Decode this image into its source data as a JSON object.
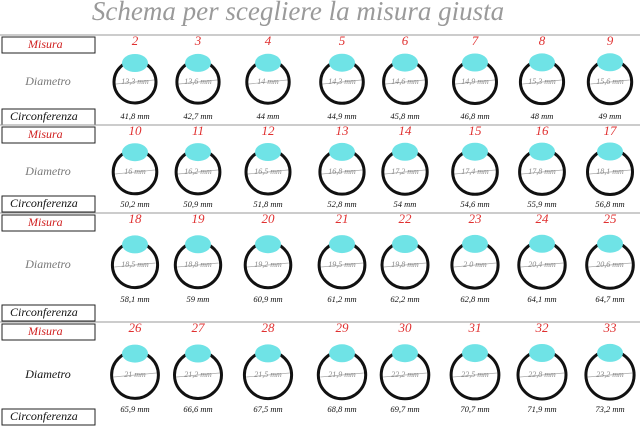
{
  "title": "Schema per scegliere la misura giusta",
  "groups": [
    {
      "misura_label": "Misura",
      "diametro_label": "Diametro",
      "circonferenza_label": "Circonferenza",
      "sizes": [
        "2",
        "3",
        "4",
        "5",
        "6",
        "7",
        "8",
        "9"
      ],
      "diameters": [
        "13,3 mm",
        "13,6 mm",
        "14 mm",
        "14,3 mm",
        "14,6 mm",
        "14,9 mm",
        "15,3 mm",
        "15,6 mm"
      ],
      "circumferences": [
        "41,8 mm",
        "42,7 mm",
        "44 mm",
        "44,9 mm",
        "45,8 mm",
        "46,8 mm",
        "48 mm",
        "49 mm"
      ]
    },
    {
      "misura_label": "Misura",
      "diametro_label": "Diametro",
      "circonferenza_label": "Circonferenza",
      "sizes": [
        "10",
        "11",
        "12",
        "13",
        "14",
        "15",
        "16",
        "17"
      ],
      "diameters": [
        "16 mm",
        "16,2 mm",
        "16,5 mm",
        "16,8 mm",
        "17,2 mm",
        "17,4 mm",
        "17,8 mm",
        "18,1 mm"
      ],
      "circumferences": [
        "50,2 mm",
        "50,9 mm",
        "51,8 mm",
        "52,8 mm",
        "54 mm",
        "54,6 mm",
        "55,9 mm",
        "56,8 mm"
      ]
    },
    {
      "misura_label": "Misura",
      "diametro_label": "Diametro",
      "circonferenza_label": "Circonferenza",
      "sizes": [
        "18",
        "19",
        "20",
        "21",
        "22",
        "23",
        "24",
        "25"
      ],
      "diameters": [
        "18,5 mm",
        "18,8 mm",
        "19,2 mm",
        "19,5 mm",
        "19,8 mm",
        "2 0 mm",
        "20,4 mm",
        "20,6 mm"
      ],
      "circumferences": [
        "58,1 mm",
        "59 mm",
        "60,9 mm",
        "61,2 mm",
        "62,2 mm",
        "62,8 mm",
        "64,1 mm",
        "64,7 mm"
      ]
    },
    {
      "misura_label": "Misura",
      "diametro_label": "Diametro",
      "circonferenza_label": "Circonferenza",
      "sizes": [
        "26",
        "27",
        "28",
        "29",
        "30",
        "31",
        "32",
        "33"
      ],
      "diameters": [
        "21 mm",
        "21,2 mm",
        "21,5 mm",
        "21,9 mm",
        "22,2 mm",
        "22,5 mm",
        "22,8 mm",
        "23,2 mm"
      ],
      "circumferences": [
        "65,9 mm",
        "66,6 mm",
        "67,5 mm",
        "68,8 mm",
        "69,7 mm",
        "70,7 mm",
        "71,9 mm",
        "73,2 mm"
      ]
    }
  ]
}
